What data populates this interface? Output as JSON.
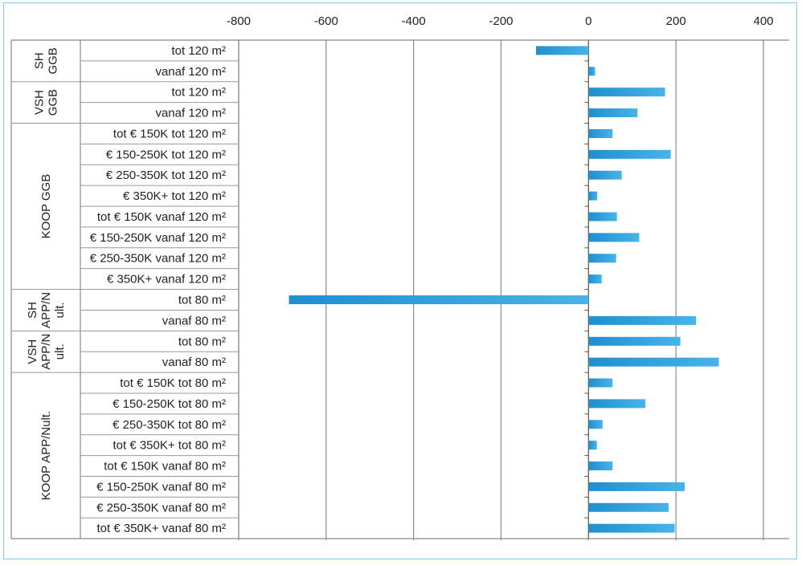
{
  "chart_data": {
    "type": "bar",
    "orientation": "horizontal",
    "title": "",
    "xlabel": "",
    "ylabel": "",
    "xlim": [
      -800,
      400
    ],
    "x_ticks": [
      "-800",
      "-600",
      "-400",
      "-200",
      "0",
      "200",
      "400"
    ],
    "grid": true,
    "legend": "none",
    "bar_color": "#2a9fd8",
    "groups": [
      {
        "label": "SH GGB",
        "lines": [
          "SH",
          "GGB"
        ],
        "start": 0,
        "end": 2
      },
      {
        "label": "VSH GGB",
        "lines": [
          "VSH",
          "GGB"
        ],
        "start": 2,
        "end": 4
      },
      {
        "label": "KOOP GGB",
        "lines": [
          "KOOP GGB"
        ],
        "start": 4,
        "end": 12
      },
      {
        "label": "SH APP/Nult.",
        "lines": [
          "SH",
          "APP/N",
          "ult."
        ],
        "start": 12,
        "end": 14
      },
      {
        "label": "VSH APP/Nult.",
        "lines": [
          "VSH",
          "APP/N",
          "ult."
        ],
        "start": 14,
        "end": 16
      },
      {
        "label": "KOOP APP/Nult.",
        "lines": [
          "KOOP APP/Nult."
        ],
        "start": 16,
        "end": 24
      }
    ],
    "categories": [
      "tot 120 m²",
      "vanaf 120 m²",
      "tot 120 m²",
      "vanaf 120 m²",
      "tot € 150K tot 120 m²",
      "€ 150-250K tot 120 m²",
      "€ 250-350K tot 120 m²",
      "€ 350K+ tot 120 m²",
      "tot € 150K vanaf 120 m²",
      "€ 150-250K vanaf 120 m²",
      "€ 250-350K vanaf 120 m²",
      "€ 350K+ vanaf 120 m²",
      "tot 80 m²",
      "vanaf 80 m²",
      "tot 80 m²",
      "vanaf 80 m²",
      "tot € 150K tot 80 m²",
      "€ 150-250K tot 80 m²",
      "€ 250-350K tot 80 m²",
      "tot € 350K+ tot 80 m²",
      "tot € 150K vanaf 80 m²",
      "€ 150-250K vanaf 80 m²",
      "€ 250-350K vanaf 80 m²",
      "tot € 350K+ vanaf 80 m²"
    ],
    "values": [
      -120,
      15,
      175,
      112,
      55,
      188,
      76,
      20,
      65,
      116,
      63,
      30,
      -685,
      246,
      210,
      298,
      55,
      130,
      32,
      19,
      55,
      220,
      183,
      197
    ]
  }
}
